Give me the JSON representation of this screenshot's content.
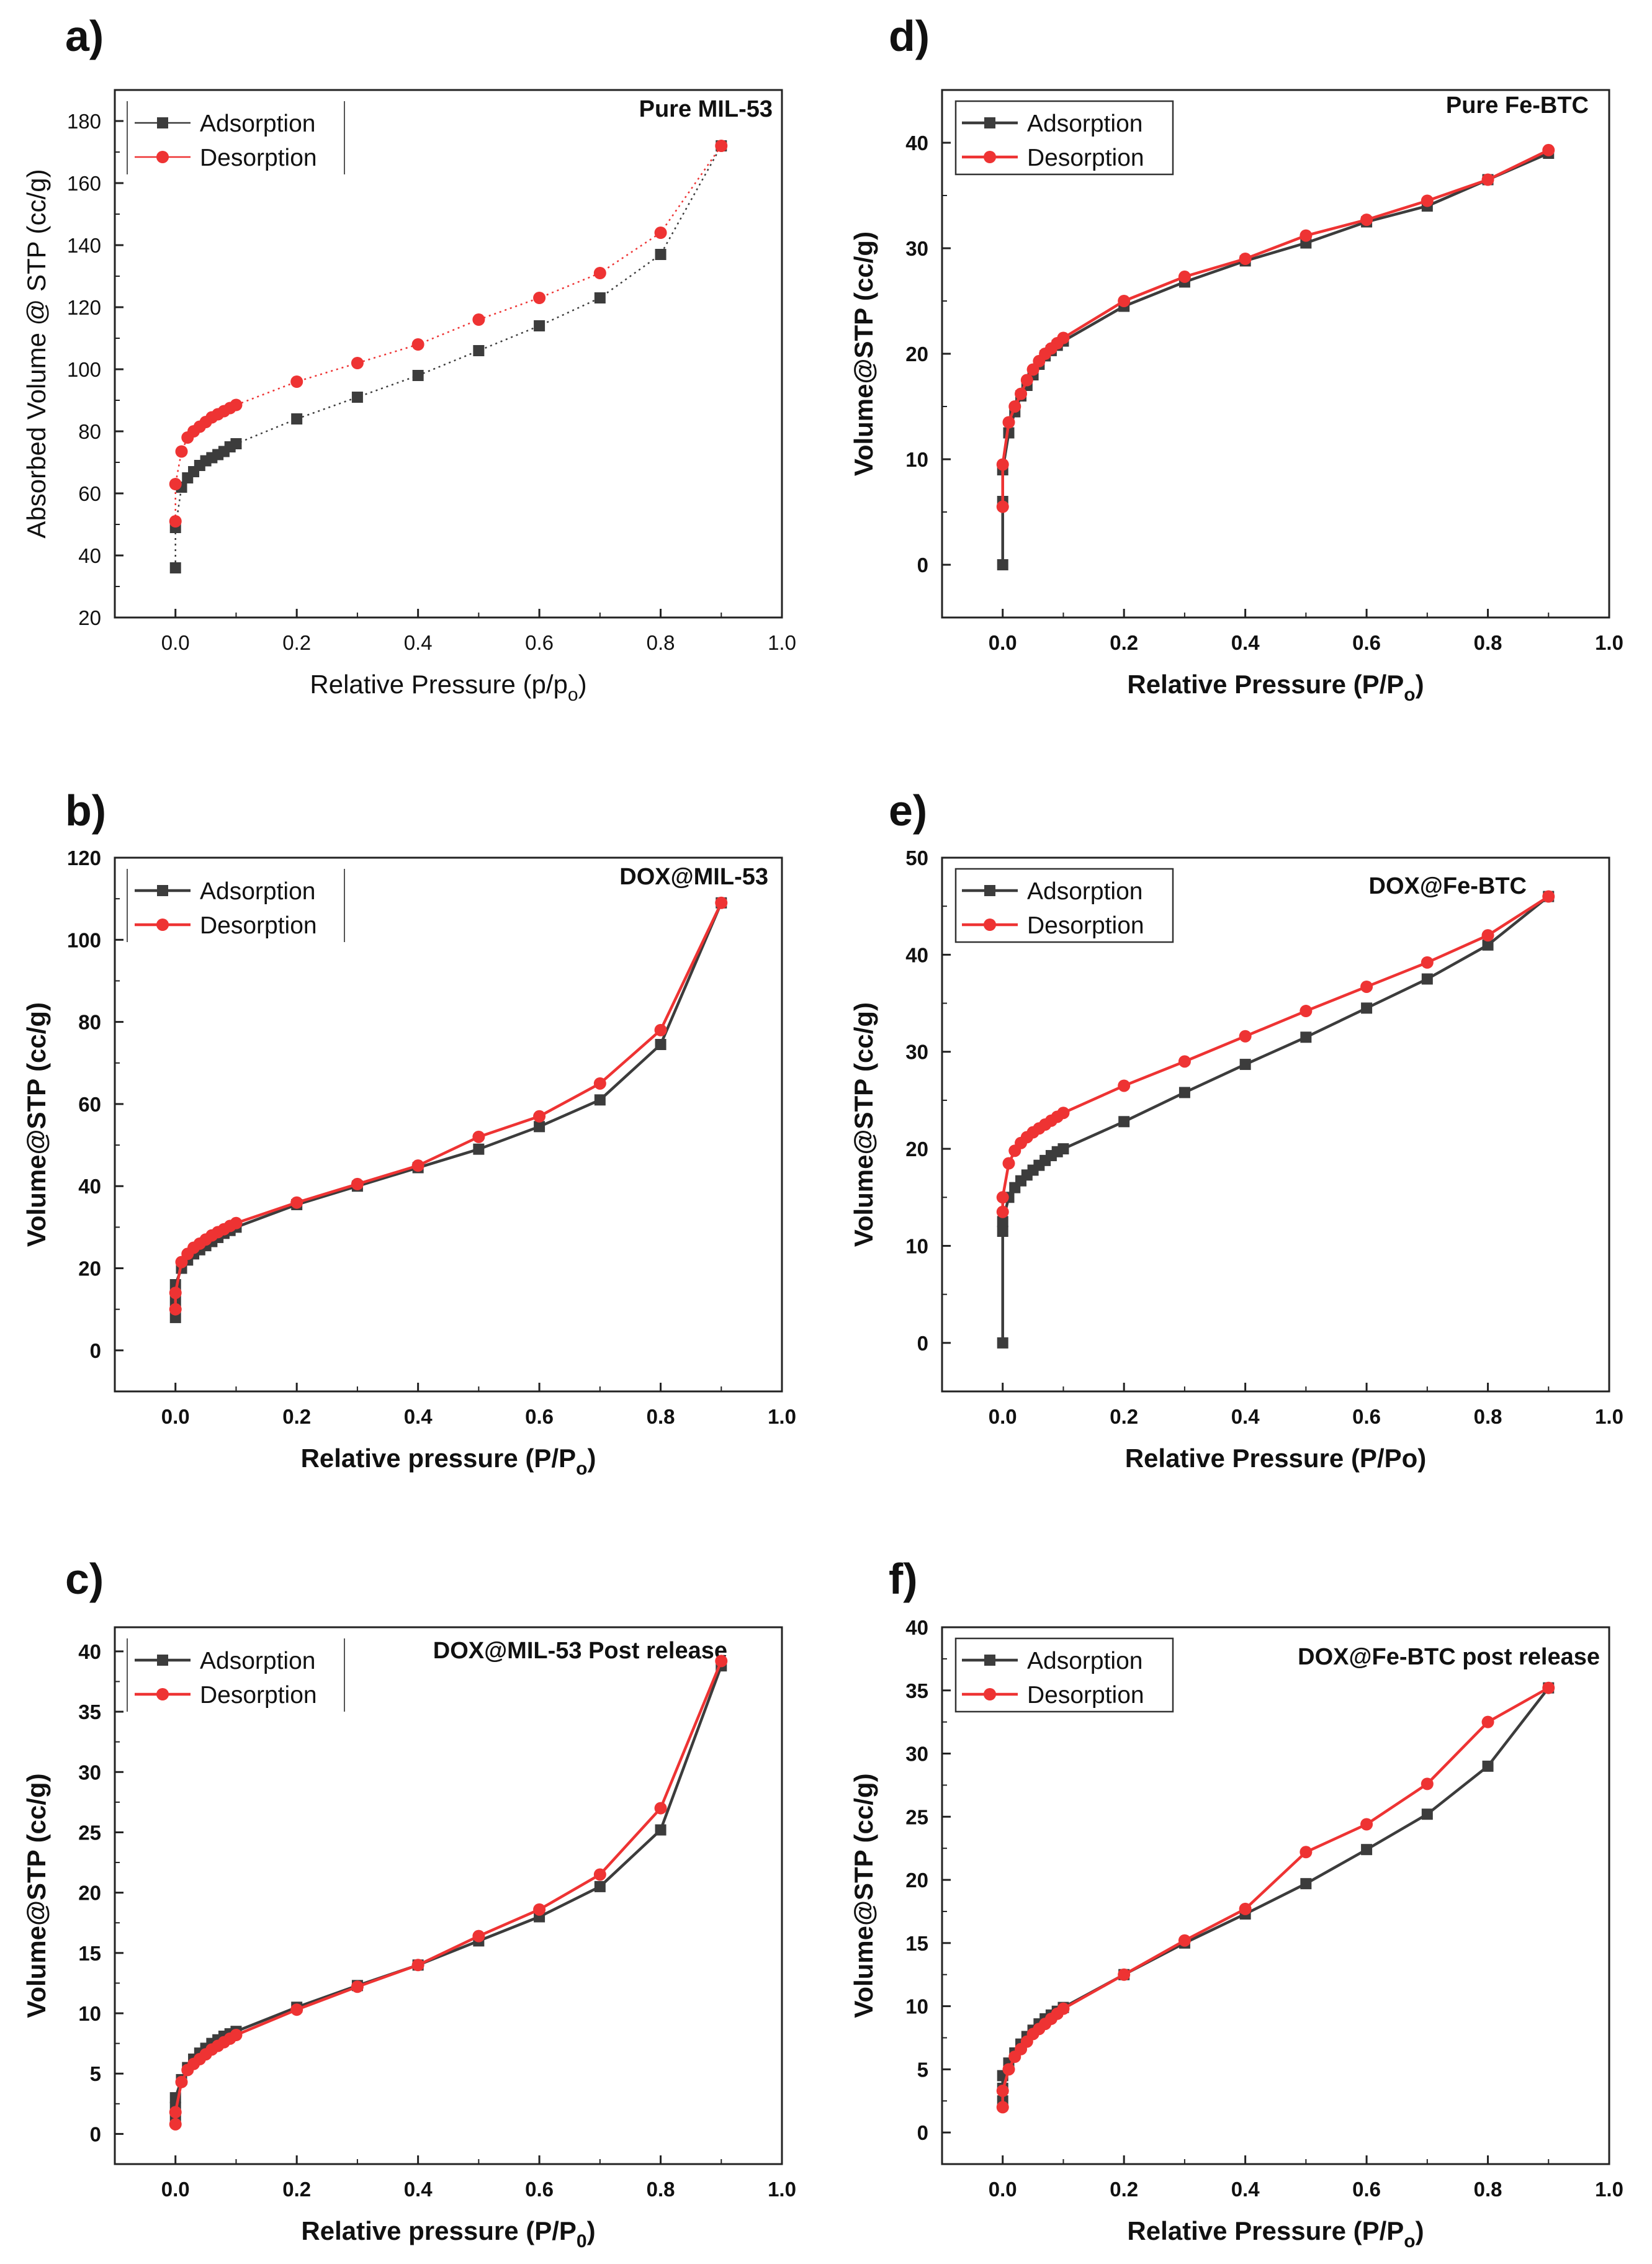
{
  "figure": {
    "description_colors": {
      "adsorption": "#3c3c3c",
      "desorption": "#ee3333"
    }
  },
  "chart_data": [
    {
      "type": "line",
      "panel": "a)",
      "title": "Pure MIL-53",
      "xlabel": "Relative Pressure (p/p",
      "xlabel_sub": "o",
      "xlabel_tail": ")",
      "ylabel": "Absorbed Volume @ STP (cc/g)",
      "bold_axes": false,
      "xlim": [
        -0.1,
        1.0
      ],
      "ylim": [
        20,
        190
      ],
      "xticks": [
        0.0,
        0.2,
        0.4,
        0.6,
        0.8,
        1.0
      ],
      "xtick_labels": [
        "0.0",
        "0.2",
        "0.4",
        "0.6",
        "0.8",
        "1.0"
      ],
      "yticks": [
        20,
        40,
        60,
        80,
        100,
        120,
        140,
        160,
        180
      ],
      "ytick_labels": [
        "20",
        "40",
        "60",
        "80",
        "100",
        "120",
        "140",
        "160",
        "180"
      ],
      "legend": {
        "position": "top-left",
        "framed": false,
        "entries": [
          "Adsorption",
          "Desorption"
        ]
      },
      "line_style": "dotted",
      "series": [
        {
          "name": "Adsorption",
          "color": "#3c3c3c",
          "marker": "square",
          "x": [
            0.0,
            0.0,
            0.01,
            0.02,
            0.03,
            0.04,
            0.05,
            0.06,
            0.07,
            0.08,
            0.09,
            0.1,
            0.2,
            0.3,
            0.4,
            0.5,
            0.6,
            0.7,
            0.8,
            0.9
          ],
          "y": [
            36,
            49,
            62,
            65,
            67,
            69,
            70.5,
            71.5,
            72.5,
            73.5,
            75,
            76,
            84,
            91,
            98,
            106,
            114,
            123,
            137,
            172
          ]
        },
        {
          "name": "Desorption",
          "color": "#ee3333",
          "marker": "circle",
          "x": [
            0.9,
            0.8,
            0.7,
            0.6,
            0.5,
            0.4,
            0.3,
            0.2,
            0.1,
            0.09,
            0.08,
            0.07,
            0.06,
            0.05,
            0.04,
            0.03,
            0.02,
            0.01,
            0.0,
            0.0
          ],
          "y": [
            172,
            144,
            131,
            123,
            116,
            108,
            102,
            96,
            88.5,
            87.5,
            86.5,
            85.5,
            84.5,
            83,
            81.5,
            80,
            78,
            73.5,
            63,
            51
          ]
        }
      ]
    },
    {
      "type": "line",
      "panel": "b)",
      "title": "DOX@MIL-53",
      "xlabel": "Relative pressure (P/P",
      "xlabel_sub": "o",
      "xlabel_tail": ")",
      "ylabel": "Volume@STP (cc/g)",
      "bold_axes": true,
      "xlim": [
        -0.1,
        1.0
      ],
      "ylim": [
        -10,
        120
      ],
      "xticks": [
        0.0,
        0.2,
        0.4,
        0.6,
        0.8,
        1.0
      ],
      "xtick_labels": [
        "0.0",
        "0.2",
        "0.4",
        "0.6",
        "0.8",
        "1.0"
      ],
      "yticks": [
        0,
        20,
        40,
        60,
        80,
        100,
        120
      ],
      "ytick_labels": [
        "0",
        "20",
        "40",
        "60",
        "80",
        "100",
        "120"
      ],
      "legend": {
        "position": "top-left",
        "framed": false,
        "entries": [
          "Adsorption",
          "Desorption"
        ]
      },
      "line_style": "solid",
      "series": [
        {
          "name": "Adsorption",
          "color": "#3c3c3c",
          "marker": "square",
          "x": [
            0.0,
            0.0,
            0.0,
            0.01,
            0.02,
            0.03,
            0.04,
            0.05,
            0.06,
            0.07,
            0.08,
            0.09,
            0.1,
            0.2,
            0.3,
            0.4,
            0.5,
            0.6,
            0.7,
            0.8,
            0.9
          ],
          "y": [
            8,
            12,
            16,
            20,
            22,
            23.5,
            24.5,
            25.5,
            26.5,
            27.5,
            28.5,
            29.2,
            30,
            35.5,
            40,
            44.5,
            49,
            54.5,
            61,
            74.5,
            109
          ]
        },
        {
          "name": "Desorption",
          "color": "#ee3333",
          "marker": "circle",
          "x": [
            0.9,
            0.8,
            0.7,
            0.6,
            0.5,
            0.4,
            0.3,
            0.2,
            0.1,
            0.09,
            0.08,
            0.07,
            0.06,
            0.05,
            0.04,
            0.03,
            0.02,
            0.01,
            0.0,
            0.0
          ],
          "y": [
            109,
            78,
            65,
            57,
            52,
            45,
            40.5,
            36,
            31,
            30.3,
            29.5,
            28.8,
            28,
            27,
            26,
            25,
            23.5,
            21.5,
            14,
            10
          ]
        }
      ]
    },
    {
      "type": "line",
      "panel": "c)",
      "title": "DOX@MIL-53 Post release",
      "xlabel": "Relative pressure (P/P",
      "xlabel_sub": "0",
      "xlabel_tail": ")",
      "ylabel": "Volume@STP (cc/g)",
      "bold_axes": true,
      "xlim": [
        -0.1,
        1.0
      ],
      "ylim": [
        -2.5,
        42
      ],
      "xticks": [
        0.0,
        0.2,
        0.4,
        0.6,
        0.8,
        1.0
      ],
      "xtick_labels": [
        "0.0",
        "0.2",
        "0.4",
        "0.6",
        "0.8",
        "1.0"
      ],
      "yticks": [
        0,
        5,
        10,
        15,
        20,
        25,
        30,
        35,
        40
      ],
      "ytick_labels": [
        "0",
        "5",
        "10",
        "15",
        "20",
        "25",
        "30",
        "35",
        "40"
      ],
      "legend": {
        "position": "top-left",
        "framed": false,
        "entries": [
          "Adsorption",
          "Desorption"
        ]
      },
      "line_style": "solid",
      "series": [
        {
          "name": "Adsorption",
          "color": "#3c3c3c",
          "marker": "square",
          "x": [
            0.0,
            0.0,
            0.0,
            0.01,
            0.02,
            0.03,
            0.04,
            0.05,
            0.06,
            0.07,
            0.08,
            0.09,
            0.1,
            0.2,
            0.3,
            0.4,
            0.5,
            0.6,
            0.7,
            0.8,
            0.9
          ],
          "y": [
            1.2,
            2.2,
            3.0,
            4.5,
            5.5,
            6.2,
            6.7,
            7.1,
            7.5,
            7.8,
            8.1,
            8.3,
            8.5,
            10.5,
            12.3,
            14.0,
            16.0,
            18.0,
            20.5,
            25.2,
            38.8
          ]
        },
        {
          "name": "Desorption",
          "color": "#ee3333",
          "marker": "circle",
          "x": [
            0.9,
            0.8,
            0.7,
            0.6,
            0.5,
            0.4,
            0.3,
            0.2,
            0.1,
            0.09,
            0.08,
            0.07,
            0.06,
            0.05,
            0.04,
            0.03,
            0.02,
            0.01,
            0.0,
            0.0
          ],
          "y": [
            39.2,
            27.0,
            21.5,
            18.6,
            16.4,
            14.0,
            12.2,
            10.3,
            8.2,
            7.9,
            7.6,
            7.3,
            7.0,
            6.6,
            6.2,
            5.8,
            5.3,
            4.3,
            1.8,
            0.8
          ]
        }
      ]
    },
    {
      "type": "line",
      "panel": "d)",
      "title": "Pure Fe-BTC",
      "xlabel": "Relative Pressure (P/P",
      "xlabel_sub": "o",
      "xlabel_tail": ")",
      "ylabel": "Volume@STP (cc/g)",
      "bold_axes": true,
      "xlim": [
        -0.1,
        1.0
      ],
      "ylim": [
        -5,
        45
      ],
      "xticks": [
        0.0,
        0.2,
        0.4,
        0.6,
        0.8,
        1.0
      ],
      "xtick_labels": [
        "0.0",
        "0.2",
        "0.4",
        "0.6",
        "0.8",
        "1.0"
      ],
      "yticks": [
        0,
        10,
        20,
        30,
        40
      ],
      "ytick_labels": [
        "0",
        "10",
        "20",
        "30",
        "40"
      ],
      "legend": {
        "position": "top-left",
        "framed": true,
        "entries": [
          "Adsorption",
          "Desorption"
        ]
      },
      "line_style": "solid",
      "series": [
        {
          "name": "Adsorption",
          "color": "#3c3c3c",
          "marker": "square",
          "x": [
            0.0,
            0.0,
            0.0,
            0.01,
            0.02,
            0.03,
            0.04,
            0.05,
            0.06,
            0.07,
            0.08,
            0.09,
            0.1,
            0.2,
            0.3,
            0.4,
            0.5,
            0.6,
            0.7,
            0.8,
            0.9
          ],
          "y": [
            0,
            6,
            9,
            12.5,
            14.5,
            16,
            17,
            18,
            19,
            19.8,
            20.3,
            20.8,
            21.2,
            24.5,
            26.8,
            28.8,
            30.5,
            32.5,
            34,
            36.5,
            39
          ]
        },
        {
          "name": "Desorption",
          "color": "#ee3333",
          "marker": "circle",
          "x": [
            0.9,
            0.8,
            0.7,
            0.6,
            0.5,
            0.4,
            0.3,
            0.2,
            0.1,
            0.09,
            0.08,
            0.07,
            0.06,
            0.05,
            0.04,
            0.03,
            0.02,
            0.01,
            0.0,
            0.0
          ],
          "y": [
            39.3,
            36.5,
            34.5,
            32.7,
            31.2,
            29,
            27.3,
            25,
            21.5,
            21,
            20.5,
            20,
            19.3,
            18.5,
            17.5,
            16.2,
            15,
            13.5,
            9.5,
            5.5
          ]
        }
      ]
    },
    {
      "type": "line",
      "panel": "e)",
      "title": "DOX@Fe-BTC",
      "xlabel": "Relative Pressure (P/Po)",
      "xlabel_sub": "",
      "xlabel_tail": "",
      "ylabel": "Volume@STP (cc/g)",
      "bold_axes": true,
      "xlim": [
        -0.1,
        1.0
      ],
      "ylim": [
        -5,
        50
      ],
      "xticks": [
        0.0,
        0.2,
        0.4,
        0.6,
        0.8,
        1.0
      ],
      "xtick_labels": [
        "0.0",
        "0.2",
        "0.4",
        "0.6",
        "0.8",
        "1.0"
      ],
      "yticks": [
        0,
        10,
        20,
        30,
        40,
        50
      ],
      "ytick_labels": [
        "0",
        "10",
        "20",
        "30",
        "40",
        "50"
      ],
      "legend": {
        "position": "top-left",
        "framed": true,
        "entries": [
          "Adsorption",
          "Desorption"
        ]
      },
      "line_style": "solid",
      "series": [
        {
          "name": "Adsorption",
          "color": "#3c3c3c",
          "marker": "square",
          "x": [
            0.0,
            0.0,
            0.0,
            0.01,
            0.02,
            0.03,
            0.04,
            0.05,
            0.06,
            0.07,
            0.08,
            0.09,
            0.1,
            0.2,
            0.3,
            0.4,
            0.5,
            0.6,
            0.7,
            0.8,
            0.9
          ],
          "y": [
            0,
            11.5,
            12.5,
            15,
            16,
            16.7,
            17.3,
            17.8,
            18.3,
            18.8,
            19.3,
            19.7,
            20,
            22.8,
            25.8,
            28.7,
            31.5,
            34.5,
            37.5,
            41,
            46
          ]
        },
        {
          "name": "Desorption",
          "color": "#ee3333",
          "marker": "circle",
          "x": [
            0.9,
            0.8,
            0.7,
            0.6,
            0.5,
            0.4,
            0.3,
            0.2,
            0.1,
            0.09,
            0.08,
            0.07,
            0.06,
            0.05,
            0.04,
            0.03,
            0.02,
            0.01,
            0.0,
            0.0
          ],
          "y": [
            46,
            42,
            39.2,
            36.7,
            34.2,
            31.6,
            29,
            26.5,
            23.7,
            23.3,
            22.9,
            22.5,
            22.1,
            21.7,
            21.2,
            20.6,
            19.8,
            18.5,
            15,
            13.5
          ]
        }
      ]
    },
    {
      "type": "line",
      "panel": "f)",
      "title": "DOX@Fe-BTC post release",
      "xlabel": "Relative Pressure (P/P",
      "xlabel_sub": "o",
      "xlabel_tail": ")",
      "ylabel": "Volume@STP (cc/g)",
      "bold_axes": true,
      "xlim": [
        -0.1,
        1.0
      ],
      "ylim": [
        -2.5,
        40
      ],
      "xticks": [
        0.0,
        0.2,
        0.4,
        0.6,
        0.8,
        1.0
      ],
      "xtick_labels": [
        "0.0",
        "0.2",
        "0.4",
        "0.6",
        "0.8",
        "1.0"
      ],
      "yticks": [
        0,
        5,
        10,
        15,
        20,
        25,
        30,
        35,
        40
      ],
      "ytick_labels": [
        "0",
        "5",
        "10",
        "15",
        "20",
        "25",
        "30",
        "35",
        "40"
      ],
      "legend": {
        "position": "top-left",
        "framed": true,
        "entries": [
          "Adsorption",
          "Desorption"
        ]
      },
      "line_style": "solid",
      "series": [
        {
          "name": "Adsorption",
          "color": "#3c3c3c",
          "marker": "square",
          "x": [
            0.0,
            0.0,
            0.0,
            0.01,
            0.02,
            0.03,
            0.04,
            0.05,
            0.06,
            0.07,
            0.08,
            0.09,
            0.1,
            0.2,
            0.3,
            0.4,
            0.5,
            0.6,
            0.7,
            0.8,
            0.9
          ],
          "y": [
            2.5,
            3.5,
            4.5,
            5.5,
            6.3,
            7.0,
            7.6,
            8.1,
            8.6,
            9.0,
            9.3,
            9.6,
            9.9,
            12.5,
            15.0,
            17.3,
            19.7,
            22.4,
            25.2,
            29.0,
            35.2
          ]
        },
        {
          "name": "Desorption",
          "color": "#ee3333",
          "marker": "circle",
          "x": [
            0.9,
            0.8,
            0.7,
            0.6,
            0.5,
            0.4,
            0.3,
            0.2,
            0.1,
            0.09,
            0.08,
            0.07,
            0.06,
            0.05,
            0.04,
            0.03,
            0.02,
            0.01,
            0.0,
            0.0
          ],
          "y": [
            35.2,
            32.5,
            27.6,
            24.4,
            22.2,
            17.7,
            15.2,
            12.5,
            9.8,
            9.4,
            9.0,
            8.6,
            8.2,
            7.8,
            7.2,
            6.6,
            6.0,
            5.0,
            3.3,
            2.0
          ]
        }
      ]
    }
  ]
}
